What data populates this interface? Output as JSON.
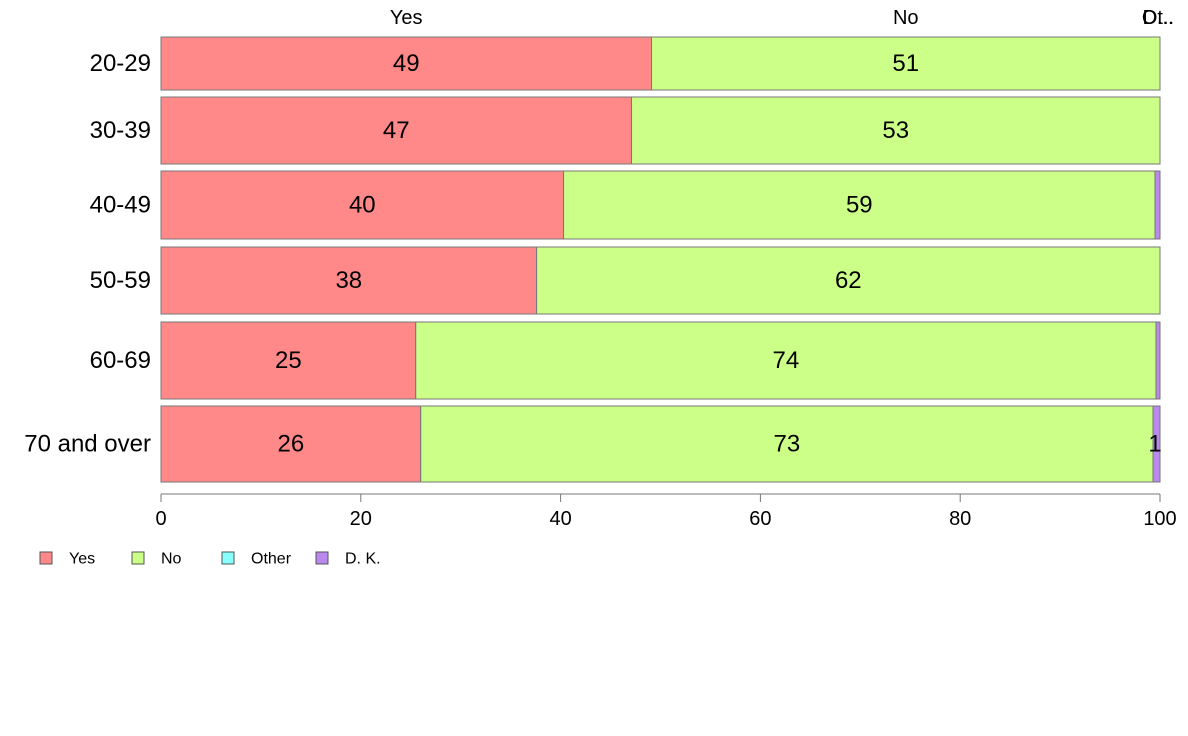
{
  "chart_data": {
    "type": "bar",
    "orientation": "horizontal",
    "stacked": true,
    "categories": [
      "20-29",
      "30-39",
      "40-49",
      "50-59",
      "60-69",
      "70 and over"
    ],
    "series": [
      {
        "name": "Yes",
        "values": [
          49.1,
          47.1,
          40.3,
          37.6,
          25.5,
          26.0
        ],
        "labels": [
          "49",
          "47",
          "40",
          "38",
          "25",
          "26"
        ]
      },
      {
        "name": "No",
        "values": [
          50.9,
          52.9,
          59.2,
          62.4,
          74.1,
          73.3
        ],
        "labels": [
          "51",
          "53",
          "59",
          "62",
          "74",
          "73"
        ]
      },
      {
        "name": "Other",
        "values": [
          0,
          0,
          0,
          0,
          0,
          0
        ],
        "labels": [
          "",
          "",
          "",
          "",
          "",
          ""
        ]
      },
      {
        "name": "D. K.",
        "values": [
          0,
          0,
          0.5,
          0,
          0.4,
          0.7
        ],
        "labels": [
          "",
          "",
          "",
          "",
          "",
          "1"
        ]
      }
    ],
    "top_labels": [
      "Yes",
      "No",
      "Ot..",
      "D..."
    ],
    "xlim": [
      0,
      100
    ],
    "xticks": [
      "0",
      "20",
      "40",
      "60",
      "80",
      "100"
    ],
    "legend": [
      "Yes",
      "No",
      "Other",
      "D. K."
    ],
    "legend_position": "bottom-left",
    "grid": false
  },
  "colors": {
    "Yes": "#ff8888",
    "No": "#ccff88",
    "Other": "#88ffff",
    "D. K.": "#bb88ee",
    "bar_border": "#777777",
    "axis": "#777777"
  }
}
